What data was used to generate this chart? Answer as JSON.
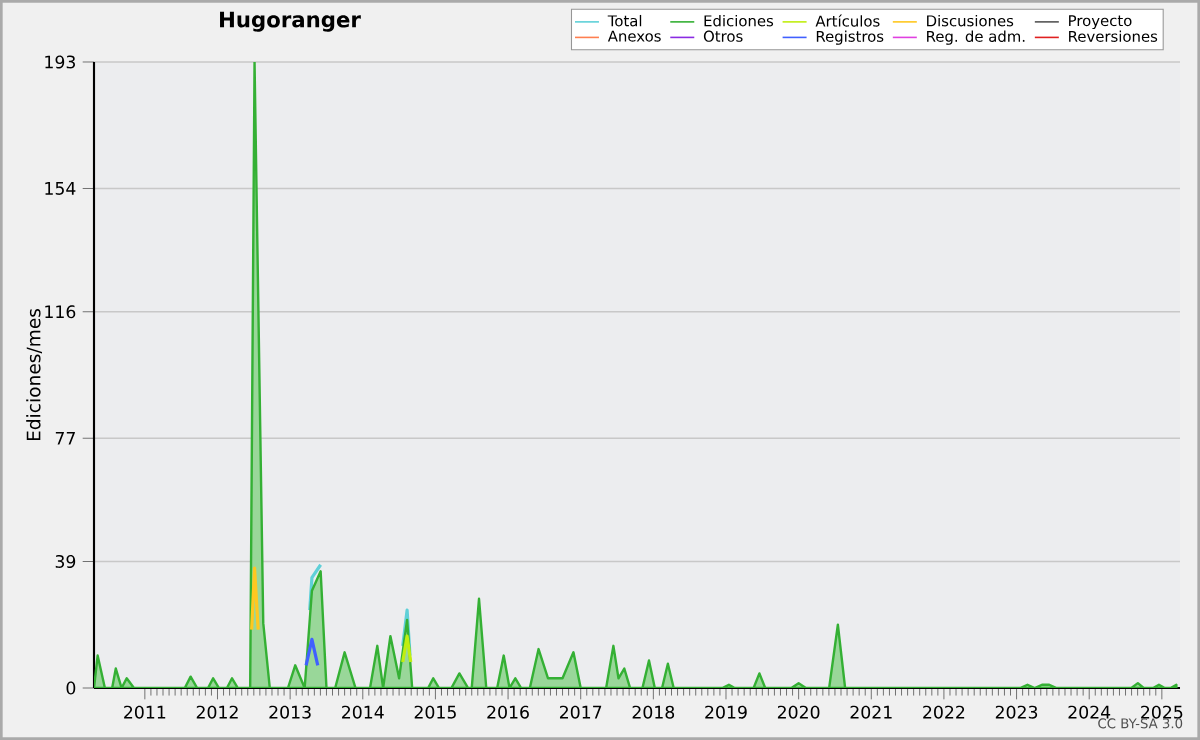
{
  "chart_data": {
    "type": "line",
    "title": "Hugoranger",
    "ylabel": "Ediciones/mes",
    "annotations": [
      "CC BY-SA 3.0"
    ],
    "x": [
      2010.3,
      2010.35,
      2010.45,
      2010.55,
      2010.6,
      2010.68,
      2010.75,
      2010.85,
      2011.55,
      2011.63,
      2011.72,
      2011.87,
      2011.94,
      2012.02,
      2012.13,
      2012.2,
      2012.28,
      2012.45,
      2012.51,
      2012.63,
      2012.72,
      2012.97,
      2013.07,
      2013.2,
      2013.3,
      2013.42,
      2013.5,
      2013.62,
      2013.75,
      2013.9,
      2014.1,
      2014.2,
      2014.28,
      2014.38,
      2014.5,
      2014.61,
      2014.68,
      2014.9,
      2014.97,
      2015.05,
      2015.22,
      2015.33,
      2015.45,
      2015.5,
      2015.6,
      2015.7,
      2015.85,
      2015.94,
      2016.02,
      2016.1,
      2016.18,
      2016.3,
      2016.42,
      2016.55,
      2016.75,
      2016.9,
      2017.0,
      2017.35,
      2017.45,
      2017.52,
      2017.6,
      2017.68,
      2017.85,
      2017.94,
      2018.02,
      2018.12,
      2018.2,
      2018.28,
      2018.95,
      2019.04,
      2019.12,
      2019.38,
      2019.46,
      2019.54,
      2019.9,
      2020.0,
      2020.1,
      2020.42,
      2020.54,
      2020.64,
      2023.05,
      2023.15,
      2023.25,
      2023.35,
      2023.45,
      2023.55,
      2024.58,
      2024.67,
      2024.75,
      2024.88,
      2024.96,
      2025.04,
      2025.12,
      2025.2
    ],
    "xlim": [
      2010.3,
      2025.25
    ],
    "xticks": [
      2011,
      2012,
      2013,
      2014,
      2015,
      2016,
      2017,
      2018,
      2019,
      2020,
      2021,
      2022,
      2023,
      2024,
      2025
    ],
    "ylim": [
      0,
      193
    ],
    "yticks": [
      0,
      39,
      77,
      116,
      154,
      193
    ],
    "grid": "y",
    "legend": "top right",
    "series": [
      {
        "name": "Total",
        "color": "#5fd0d8",
        "x": [
          2013.27,
          2013.3,
          2013.42,
          2014,
          2014.55,
          2014.61,
          2014.65
        ],
        "values": [
          24,
          34,
          38,
          null,
          13,
          24,
          10
        ]
      },
      {
        "name": "Ediciones",
        "type": "area",
        "color": "#34b034",
        "values": [
          0,
          10,
          0,
          0,
          6,
          0,
          3,
          0,
          0,
          3.5,
          0,
          0,
          3,
          0,
          0,
          3,
          0,
          0,
          193,
          20,
          0,
          0,
          7,
          0,
          30,
          36,
          0,
          0,
          11,
          0,
          0,
          13,
          0,
          16,
          3,
          21,
          0,
          0,
          3,
          0,
          0,
          4.5,
          0,
          0,
          27.5,
          0,
          0,
          10,
          0,
          3,
          0,
          0,
          12,
          3,
          3,
          11,
          0,
          0,
          13,
          3,
          6,
          0,
          0,
          8.5,
          0,
          0,
          7.5,
          0,
          0,
          1,
          0,
          0,
          4.5,
          0,
          0,
          1.5,
          0,
          0,
          19.5,
          0,
          0,
          1,
          0,
          1,
          1,
          0,
          0,
          1.5,
          0,
          0,
          1,
          0,
          0,
          1
        ]
      },
      {
        "name": "Artículos",
        "color": "#c0ee10",
        "x": [
          2014.55,
          2014.61,
          2014.66
        ],
        "values": [
          8,
          16,
          8
        ]
      },
      {
        "name": "Discusiones",
        "color": "#ffc820",
        "x": [
          2012.47,
          2012.51,
          2012.56
        ],
        "values": [
          18,
          37,
          18
        ]
      },
      {
        "name": "Proyecto",
        "color": "#555555",
        "values": [
          null,
          null,
          null,
          null,
          null,
          null,
          null,
          null,
          null,
          null,
          null,
          null,
          null,
          null,
          null,
          null,
          null,
          null,
          null,
          null,
          null,
          null,
          null,
          null,
          null,
          null,
          null,
          null,
          null,
          null,
          null,
          null,
          null,
          null,
          null,
          null,
          null,
          null,
          null,
          null,
          null,
          null,
          null,
          null,
          null,
          null,
          null,
          null,
          null,
          null,
          null,
          null,
          null,
          null,
          null,
          null,
          null,
          null,
          null,
          null,
          null,
          null,
          null,
          null,
          null,
          null,
          null,
          null,
          null,
          null,
          null,
          null,
          null,
          null,
          null,
          null,
          null,
          null,
          null,
          null,
          null,
          null,
          null,
          null,
          null,
          null,
          null,
          null,
          null,
          null,
          null,
          null,
          null,
          null
        ]
      },
      {
        "name": "Anexos",
        "color": "#ff7f50",
        "values": [
          null,
          null,
          null,
          null,
          null,
          null,
          null,
          null,
          null,
          null,
          null,
          null,
          null,
          null,
          null,
          null,
          null,
          null,
          null,
          null,
          null,
          null,
          null,
          null,
          null,
          null,
          null,
          null,
          null,
          null,
          null,
          null,
          null,
          null,
          null,
          null,
          null,
          null,
          null,
          null,
          null,
          null,
          null,
          null,
          null,
          null,
          null,
          null,
          null,
          null,
          null,
          null,
          null,
          null,
          null,
          null,
          null,
          null,
          null,
          null,
          null,
          null,
          null,
          null,
          null,
          null,
          null,
          null,
          null,
          null,
          null,
          null,
          null,
          null,
          null,
          null,
          null,
          null,
          null,
          null,
          null,
          null,
          null,
          null,
          null,
          null,
          null,
          null,
          null,
          null,
          null,
          null,
          null,
          null
        ]
      },
      {
        "name": "Otros",
        "color": "#8a2be2",
        "values": [
          null,
          null,
          null,
          null,
          null,
          null,
          null,
          null,
          null,
          null,
          null,
          null,
          null,
          null,
          null,
          null,
          null,
          null,
          null,
          null,
          null,
          null,
          null,
          null,
          null,
          null,
          null,
          null,
          null,
          null,
          null,
          null,
          null,
          null,
          null,
          null,
          null,
          null,
          null,
          null,
          null,
          null,
          null,
          null,
          null,
          null,
          null,
          null,
          null,
          null,
          null,
          null,
          null,
          null,
          null,
          null,
          null,
          null,
          null,
          null,
          null,
          null,
          null,
          null,
          null,
          null,
          null,
          null,
          null,
          null,
          null,
          null,
          null,
          null,
          null,
          null,
          null,
          null,
          null,
          null,
          null,
          null,
          null,
          null,
          null,
          null,
          null,
          null,
          null,
          null,
          null,
          null,
          null,
          null
        ]
      },
      {
        "name": "Registros",
        "color": "#4060ff",
        "x": [
          2013.22,
          2013.3,
          2013.38
        ],
        "values": [
          7,
          15,
          7
        ]
      },
      {
        "name": "Reg. de adm.",
        "color": "#e040e0",
        "values": [
          null,
          null,
          null,
          null,
          null,
          null,
          null,
          null,
          null,
          null,
          null,
          null,
          null,
          null,
          null,
          null,
          null,
          null,
          null,
          null,
          null,
          null,
          null,
          null,
          null,
          null,
          null,
          null,
          null,
          null,
          null,
          null,
          null,
          null,
          null,
          null,
          null,
          null,
          null,
          null,
          null,
          null,
          null,
          null,
          null,
          null,
          null,
          null,
          null,
          null,
          null,
          null,
          null,
          null,
          null,
          null,
          null,
          null,
          null,
          null,
          null,
          null,
          null,
          null,
          null,
          null,
          null,
          null,
          null,
          null,
          null,
          null,
          null,
          null,
          null,
          null,
          null,
          null,
          null,
          null,
          null,
          null,
          null,
          null,
          null,
          null,
          null,
          null,
          null,
          null,
          null,
          null,
          null,
          null
        ]
      },
      {
        "name": "Reversiones",
        "color": "#e02020",
        "values": [
          null,
          null,
          null,
          null,
          null,
          null,
          null,
          null,
          null,
          null,
          null,
          null,
          null,
          null,
          null,
          null,
          null,
          null,
          null,
          null,
          null,
          null,
          null,
          null,
          null,
          null,
          null,
          null,
          null,
          null,
          null,
          null,
          null,
          null,
          null,
          null,
          null,
          null,
          null,
          null,
          null,
          null,
          null,
          null,
          null,
          null,
          null,
          null,
          null,
          null,
          null,
          null,
          null,
          null,
          null,
          null,
          null,
          null,
          null,
          null,
          null,
          null,
          null,
          null,
          null,
          null,
          null,
          null,
          null,
          null,
          null,
          null,
          null,
          null,
          null,
          null,
          null,
          null,
          null,
          null,
          null,
          null,
          null,
          null,
          null,
          null,
          null,
          null,
          null,
          null,
          null,
          null,
          null,
          null
        ]
      }
    ]
  }
}
